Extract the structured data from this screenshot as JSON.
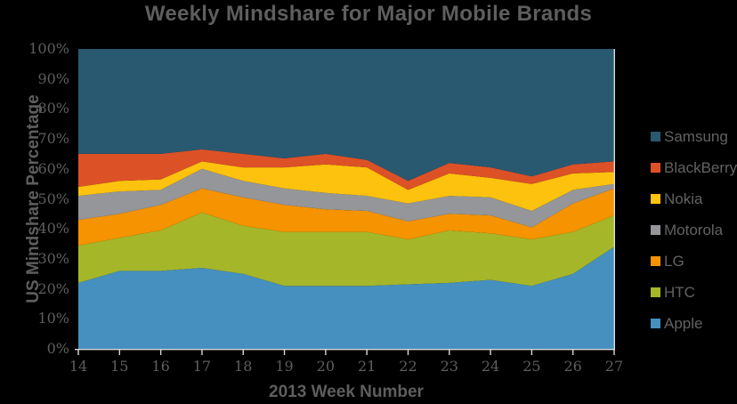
{
  "chart_data": {
    "type": "area",
    "stacked": true,
    "stack_total": 100,
    "title": "Weekly Mindshare for Major Mobile Brands",
    "xlabel": "2013 Week Number",
    "ylabel": "US Mindshare Percentage",
    "x": [
      14,
      15,
      16,
      17,
      18,
      19,
      20,
      21,
      22,
      23,
      24,
      25,
      26,
      27
    ],
    "x_tick_labels": [
      "14",
      "15",
      "16",
      "17",
      "18",
      "19",
      "20",
      "21",
      "22",
      "23",
      "24",
      "25",
      "26",
      "27"
    ],
    "y_tick_labels": [
      "0%",
      "10%",
      "20%",
      "30%",
      "40%",
      "50%",
      "60%",
      "70%",
      "80%",
      "90%",
      "100%"
    ],
    "ylim": [
      0,
      100
    ],
    "grid": false,
    "legend_position": "right",
    "legend_order_top_to_bottom": [
      "Samsung",
      "BlackBerry",
      "Nokia",
      "Motorola",
      "LG",
      "HTC",
      "Apple"
    ],
    "series": [
      {
        "name": "Apple",
        "color": "#4590be",
        "values": [
          22,
          26,
          26,
          27,
          25,
          21,
          21,
          21,
          21.5,
          22,
          23,
          21,
          25,
          34
        ]
      },
      {
        "name": "HTC",
        "color": "#a6b629",
        "values": [
          12.5,
          11,
          13.5,
          18.5,
          16,
          18,
          18,
          18,
          15,
          17.5,
          15.5,
          15.5,
          14,
          10.5
        ]
      },
      {
        "name": "LG",
        "color": "#f59300",
        "values": [
          8.5,
          8,
          8.5,
          8,
          9.5,
          9,
          7.5,
          7,
          6,
          5.5,
          6,
          4,
          9.5,
          9
        ]
      },
      {
        "name": "Motorola",
        "color": "#949699",
        "values": [
          8,
          7.5,
          5,
          6.5,
          5.5,
          5.5,
          5.5,
          5,
          6,
          6,
          6,
          5.5,
          4.5,
          1.5
        ]
      },
      {
        "name": "Nokia",
        "color": "#fdc20d",
        "values": [
          3,
          3.5,
          3.5,
          2.5,
          4.5,
          7,
          9.5,
          9.5,
          4.5,
          7.5,
          6.5,
          9,
          5.5,
          4
        ]
      },
      {
        "name": "BlackBerry",
        "color": "#dd5127",
        "values": [
          11,
          9,
          8.5,
          4,
          4.5,
          3,
          3.5,
          2.5,
          3,
          3.5,
          3.5,
          2.5,
          3,
          3.5
        ]
      },
      {
        "name": "Samsung",
        "color": "#295970",
        "values": [
          35,
          35,
          35,
          33.5,
          35,
          36.5,
          35,
          37,
          44,
          38,
          39.5,
          42.5,
          38.5,
          37.5
        ]
      }
    ],
    "axis_line_color": "#d9d9d9",
    "text_color": "#5e5e5e",
    "background_color": "#000000"
  }
}
